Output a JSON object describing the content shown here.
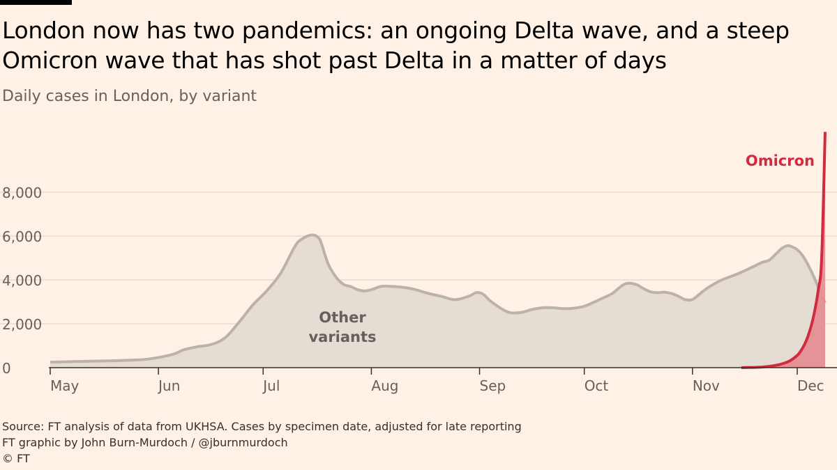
{
  "header": {
    "title": "London now has two pandemics: an ongoing Delta wave, and a steep Omicron wave that has shot past Delta in a matter of days",
    "subtitle": "Daily cases in London, by variant"
  },
  "footer": {
    "source": "Source: FT analysis of data from UKHSA. Cases by specimen date, adjusted for late reporting",
    "credit": "FT graphic by John Burn-Murdoch / @jburnmurdoch",
    "copyright": "© FT"
  },
  "colors": {
    "background": "#fff1e5",
    "other_line": "#bcb2ab",
    "other_fill": "#e5dcd4",
    "omicron_line": "#d02b3e",
    "omicron_fill": "#e48b90",
    "grid": "#e2d6cc"
  },
  "chart_data": {
    "type": "area",
    "title": "Daily cases in London, by variant",
    "xlabel": "",
    "ylabel": "",
    "ylim": [
      0,
      8000
    ],
    "y_ticks": [
      0,
      2000,
      4000,
      6000,
      8000
    ],
    "y_tick_labels": [
      "0",
      "2,000",
      "4,000",
      "6,000",
      "8,000"
    ],
    "x_unit": "days since 1 May 2021",
    "x_ticks": [
      0,
      31,
      61,
      92,
      123,
      153,
      184,
      214
    ],
    "x_tick_labels": [
      "May",
      "Jun",
      "Jul",
      "Aug",
      "Sep",
      "Oct",
      "Nov",
      "Dec"
    ],
    "grid": true,
    "series": [
      {
        "name": "Other variants",
        "label": "Other\nvariants",
        "x": [
          0,
          7,
          14,
          21,
          28,
          35,
          38,
          42,
          46,
          50,
          54,
          58,
          62,
          66,
          70,
          72,
          75,
          77,
          78,
          79,
          80,
          82,
          84,
          86,
          88,
          90,
          92,
          95,
          98,
          101,
          104,
          108,
          112,
          116,
          120,
          122,
          124,
          126,
          128,
          130,
          132,
          135,
          138,
          141,
          144,
          147,
          150,
          153,
          156,
          158,
          161,
          164,
          166,
          168,
          170,
          172,
          174,
          176,
          178,
          180,
          182,
          184,
          186,
          188,
          190,
          192,
          194,
          196,
          198,
          200,
          202,
          204,
          206,
          208,
          210,
          212,
          215,
          218,
          221,
          222
        ],
        "values": [
          250,
          280,
          300,
          330,
          390,
          600,
          800,
          950,
          1050,
          1350,
          2050,
          2850,
          3500,
          4300,
          5500,
          5850,
          6050,
          5900,
          5500,
          5000,
          4600,
          4100,
          3800,
          3700,
          3560,
          3500,
          3560,
          3710,
          3700,
          3660,
          3580,
          3400,
          3250,
          3100,
          3260,
          3420,
          3350,
          3050,
          2820,
          2620,
          2500,
          2520,
          2650,
          2730,
          2730,
          2690,
          2710,
          2800,
          3000,
          3150,
          3380,
          3760,
          3850,
          3780,
          3600,
          3460,
          3420,
          3440,
          3380,
          3250,
          3100,
          3110,
          3350,
          3600,
          3800,
          3970,
          4100,
          4220,
          4350,
          4500,
          4650,
          4800,
          4900,
          5200,
          5480,
          5540,
          5220,
          4400,
          3300,
          2950
        ]
      },
      {
        "name": "Omicron",
        "label": "Omicron",
        "x": [
          198,
          200,
          202,
          204,
          206,
          208,
          210,
          212,
          214,
          215,
          216,
          217,
          218,
          219,
          220,
          221,
          222
        ],
        "values": [
          0,
          5,
          12,
          30,
          60,
          110,
          190,
          320,
          560,
          760,
          1030,
          1400,
          1900,
          2580,
          3520,
          5000,
          10750
        ]
      }
    ]
  }
}
